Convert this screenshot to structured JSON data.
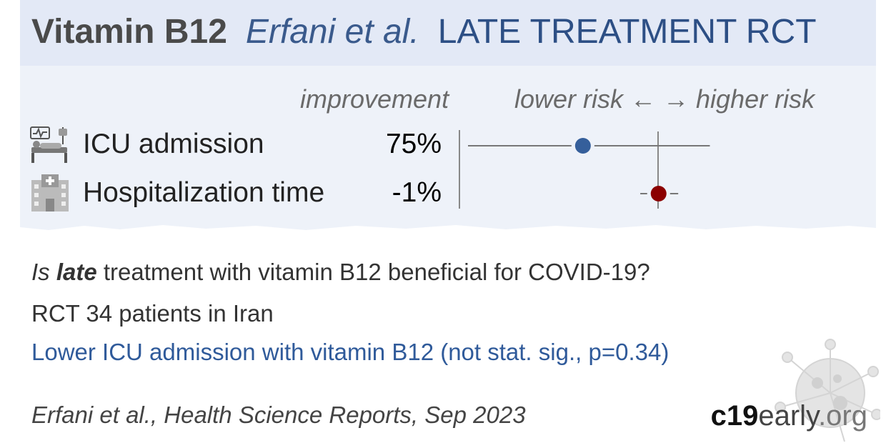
{
  "header": {
    "drug": "Vitamin B12",
    "authors": "Erfani et al.",
    "trial_type": "LATE TREATMENT RCT"
  },
  "chart_data": {
    "type": "forest",
    "column_headers": {
      "improvement": "improvement",
      "risk_direction": "lower risk ←  → higher risk"
    },
    "reference_line_value": 1.0,
    "rows": [
      {
        "label": "ICU admission",
        "improvement": "75%",
        "point_estimate": 0.25,
        "ci_low": 0.03,
        "ci_high": 2.6,
        "color": "#355f9b",
        "icon": "icu-bed-icon"
      },
      {
        "label": "Hospitalization time",
        "improvement": "-1%",
        "point_estimate": 1.01,
        "ci_low": 0.72,
        "ci_high": 1.45,
        "color": "#8b0000",
        "icon": "hospital-icon"
      }
    ]
  },
  "summary": {
    "question_prefix": "Is ",
    "question_bold": "late",
    "question_suffix": " treatment with vitamin B12 beneficial for COVID-19?",
    "study": "RCT 34 patients in Iran",
    "result": "Lower ICU admission with vitamin B12 (not stat. sig., p=0.34)"
  },
  "footer": {
    "citation": "Erfani et al., Health Science Reports, Sep 2023",
    "brand_bold": "c19",
    "brand_mid": "early",
    "brand_tld": ".org"
  },
  "colors": {
    "header_bg": "#e3e9f6",
    "panel_bg": "#eef2f9",
    "benefit": "#355f9b",
    "harm": "#8b0000"
  }
}
